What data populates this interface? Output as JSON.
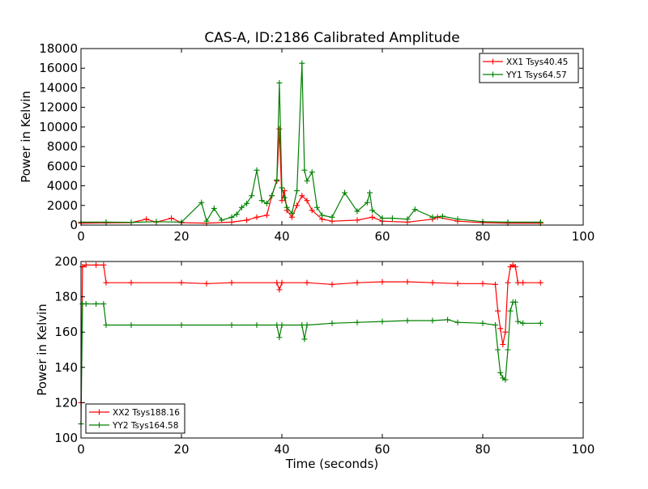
{
  "figure": {
    "title": "CAS-A, ID:2186 Calibrated Amplitude"
  },
  "colors": {
    "xx": "#ff0000",
    "yy": "#008000",
    "axis": "#000000",
    "background": "#ffffff"
  },
  "chart_data": [
    {
      "type": "line",
      "title": "CAS-A, ID:2186 Calibrated Amplitude",
      "xlabel": "",
      "ylabel": "Power in Kelvin",
      "xlim": [
        0,
        100
      ],
      "ylim": [
        0,
        18000
      ],
      "xticks": [
        0,
        20,
        40,
        60,
        80,
        100
      ],
      "yticks": [
        0,
        2000,
        4000,
        6000,
        8000,
        10000,
        12000,
        14000,
        16000,
        18000
      ],
      "grid": false,
      "legend_position": "top-right",
      "series": [
        {
          "name": "XX1 Tsys40.45",
          "color": "#ff0000",
          "x": [
            0,
            5,
            10,
            13,
            15,
            18,
            20,
            25,
            30,
            33,
            35,
            37,
            38,
            39,
            39.5,
            40,
            40.5,
            41,
            42,
            43,
            44,
            45,
            46,
            48,
            50,
            55,
            58,
            60,
            65,
            70,
            71,
            75,
            80,
            85,
            91.5
          ],
          "y": [
            200,
            220,
            250,
            600,
            300,
            700,
            250,
            200,
            300,
            500,
            800,
            1000,
            3000,
            4500,
            9800,
            2500,
            3500,
            1500,
            800,
            2000,
            3000,
            2500,
            1500,
            600,
            400,
            500,
            800,
            400,
            300,
            600,
            800,
            400,
            250,
            200,
            200
          ]
        },
        {
          "name": "YY1 Tsys64.57",
          "color": "#008000",
          "x": [
            0,
            5,
            10,
            15,
            20,
            24,
            25,
            26.5,
            28,
            30,
            31,
            32,
            33,
            34,
            35,
            36,
            37,
            38,
            39,
            39.5,
            40,
            40.5,
            41,
            42,
            43,
            44,
            44.5,
            45,
            46,
            47,
            48,
            50,
            52.5,
            55,
            57,
            57.5,
            58,
            60,
            62,
            65,
            66.5,
            70,
            72,
            75,
            80,
            85,
            91.5
          ],
          "y": [
            300,
            300,
            280,
            350,
            300,
            2300,
            400,
            1700,
            500,
            800,
            1100,
            1800,
            2200,
            3000,
            5600,
            2500,
            2200,
            3000,
            4600,
            14500,
            3800,
            2800,
            1800,
            1200,
            3500,
            16500,
            5600,
            4500,
            5400,
            1800,
            1000,
            800,
            3300,
            1400,
            2300,
            3300,
            1500,
            700,
            700,
            600,
            1600,
            800,
            900,
            600,
            350,
            300,
            300
          ]
        }
      ]
    },
    {
      "type": "line",
      "title": "",
      "xlabel": "Time (seconds)",
      "ylabel": "Power in Kelvin",
      "xlim": [
        0,
        100
      ],
      "ylim": [
        100,
        200
      ],
      "xticks": [
        0,
        20,
        40,
        60,
        80,
        100
      ],
      "yticks": [
        100,
        120,
        140,
        160,
        180,
        200
      ],
      "grid": false,
      "legend_position": "bottom-left",
      "series": [
        {
          "name": "XX2 Tsys188.16",
          "color": "#ff0000",
          "x": [
            0,
            0.3,
            1,
            3,
            4.5,
            5,
            10,
            20,
            25,
            30,
            39,
            39.5,
            40,
            45,
            50,
            55,
            60,
            65,
            70,
            75,
            80,
            82.5,
            83,
            83.5,
            84,
            84.5,
            85,
            85.5,
            86,
            86.5,
            87,
            88,
            91.5
          ],
          "y": [
            120,
            197,
            198,
            198,
            198,
            188,
            188,
            188,
            187.5,
            188,
            188,
            184,
            188,
            188,
            187,
            188,
            188.5,
            188.5,
            188,
            187.5,
            187.5,
            187,
            172,
            162,
            153,
            160,
            188,
            197,
            198,
            197,
            188,
            188,
            188
          ]
        },
        {
          "name": "YY2 Tsys164.58",
          "color": "#008000",
          "x": [
            0,
            0.3,
            1,
            3,
            4.5,
            5,
            10,
            20,
            30,
            35,
            39,
            39.5,
            40,
            44,
            44.5,
            45,
            50,
            55,
            60,
            65,
            70,
            73,
            75,
            80,
            82.5,
            83,
            83.5,
            84,
            84.5,
            85,
            85.5,
            86,
            86.5,
            87,
            88,
            91.5
          ],
          "y": [
            108,
            176,
            176,
            176,
            176,
            164,
            164,
            164,
            164,
            164,
            164,
            157,
            164,
            164,
            156,
            164,
            165,
            165.5,
            166,
            166.5,
            166.5,
            167,
            165.5,
            165,
            164,
            150,
            137,
            134,
            133,
            150,
            172,
            177,
            177,
            166,
            165,
            165
          ]
        }
      ]
    }
  ]
}
